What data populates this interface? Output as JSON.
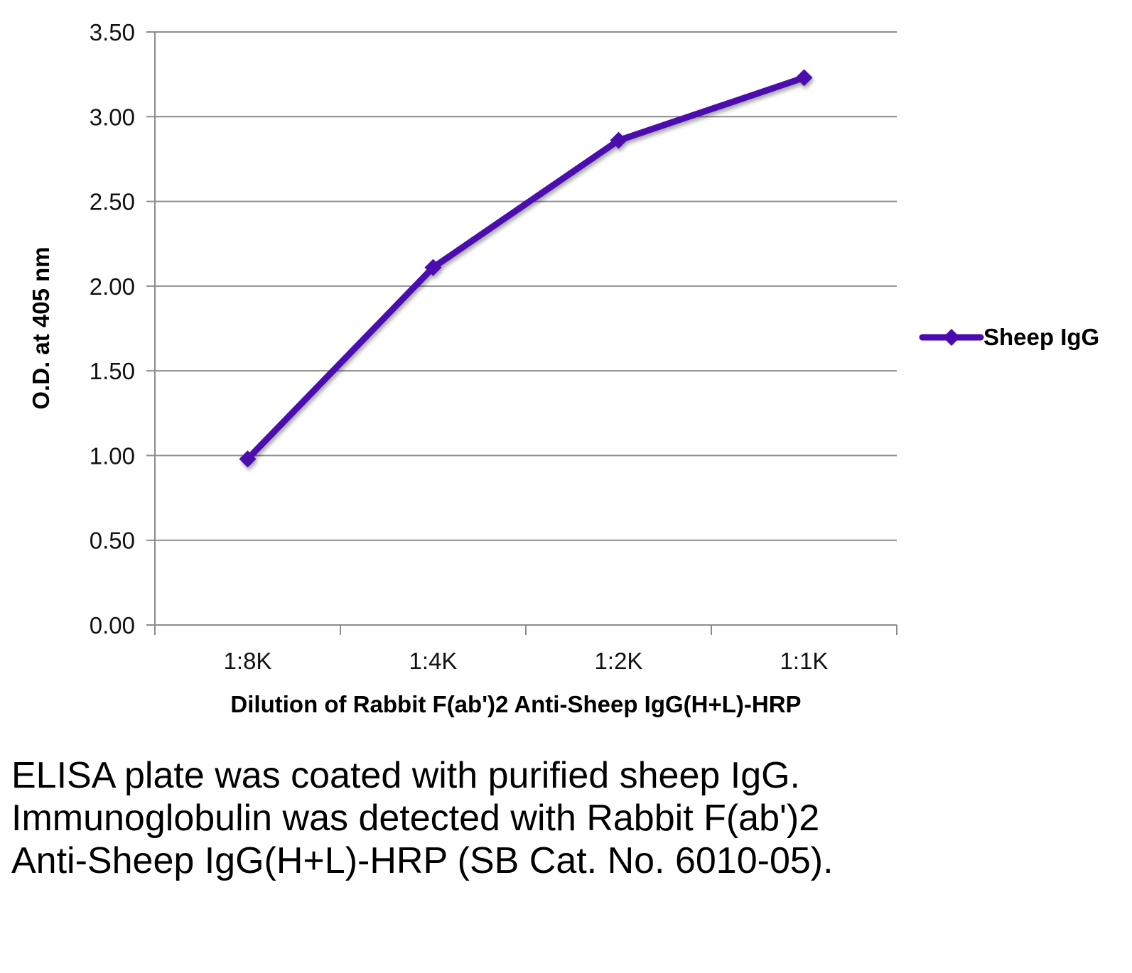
{
  "chart_data": {
    "type": "line",
    "categories": [
      "1:8K",
      "1:4K",
      "1:2K",
      "1:1K"
    ],
    "series": [
      {
        "name": "Sheep IgG",
        "values": [
          0.98,
          2.11,
          2.86,
          3.23
        ]
      }
    ],
    "xlabel": "Dilution of Rabbit F(ab')2 Anti-Sheep IgG(H+L)-HRP",
    "ylabel": "O.D. at 405 nm",
    "ylim": [
      0,
      3.5
    ],
    "yticks": [
      "0.00",
      "0.50",
      "1.00",
      "1.50",
      "2.00",
      "2.50",
      "3.00",
      "3.50"
    ],
    "grid": true,
    "legend_position": "right",
    "colors": {
      "series": "#4B0AAE",
      "grid": "#8c8c8c"
    }
  },
  "caption": "ELISA plate was coated with purified sheep IgG.  Immunoglobulin was detected with Rabbit F(ab')2 Anti-Sheep IgG(H+L)-HRP (SB Cat. No. 6010-05)."
}
